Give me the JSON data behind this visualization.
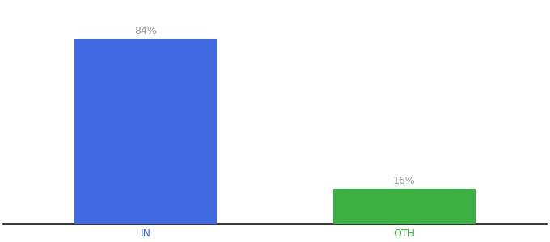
{
  "categories": [
    "IN",
    "OTH"
  ],
  "values": [
    84,
    16
  ],
  "bar_colors": [
    "#4169e1",
    "#3cb043"
  ],
  "tick_colors": [
    "#4169e1",
    "#3cb043"
  ],
  "label_texts": [
    "84%",
    "16%"
  ],
  "background_color": "#ffffff",
  "ylim": [
    0,
    100
  ],
  "bar_width": 0.55,
  "figsize": [
    6.8,
    3.0
  ],
  "dpi": 100,
  "label_fontsize": 9,
  "tick_fontsize": 9,
  "label_color": "#999999",
  "spine_color": "#111111",
  "x_positions": [
    0,
    1
  ]
}
